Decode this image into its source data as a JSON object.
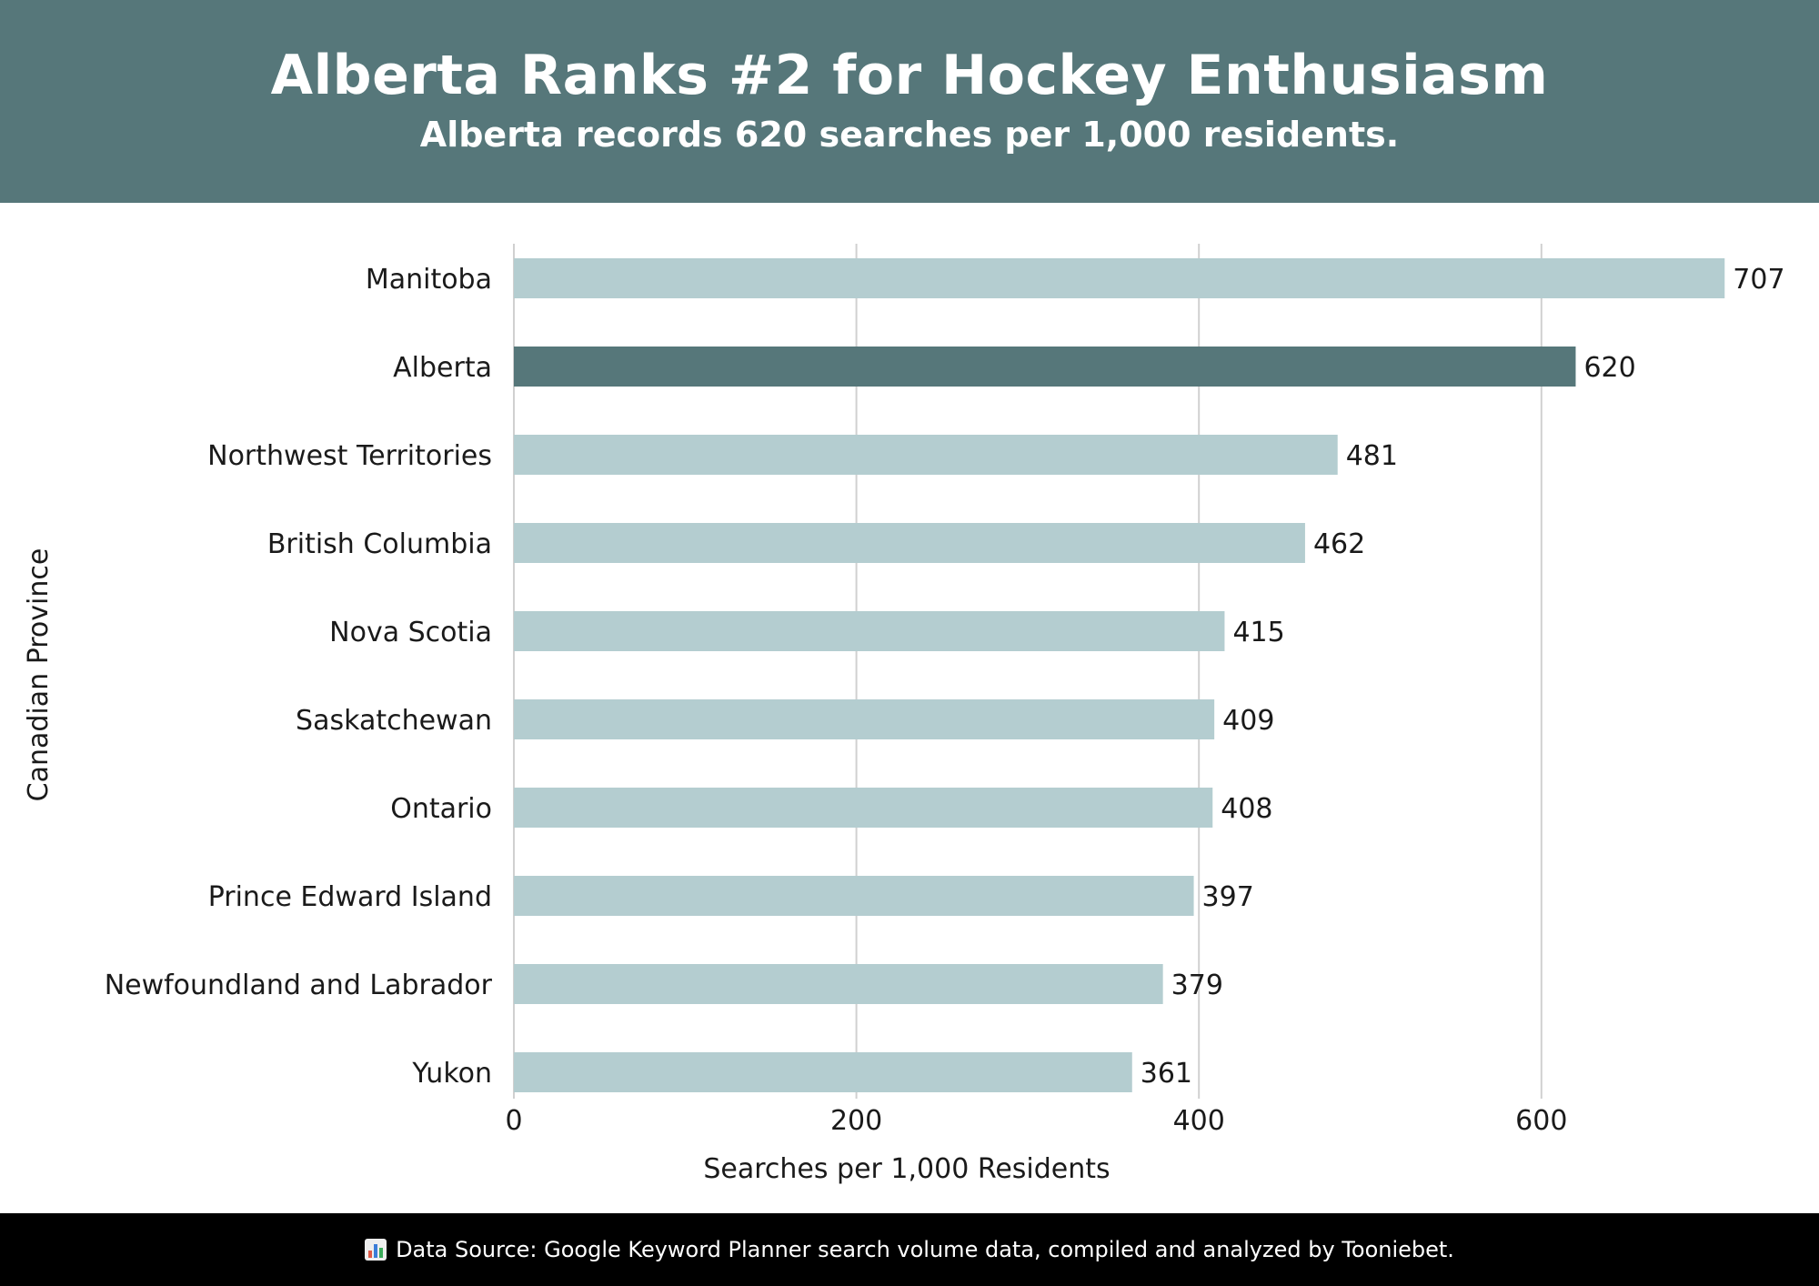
{
  "header": {
    "title": "Alberta Ranks #2 for Hockey Enthusiasm",
    "subtitle": "Alberta records 620 searches per 1,000 residents."
  },
  "footer": {
    "icon": "bar-chart-icon",
    "text": "Data Source: Google Keyword Planner search volume data, compiled and analyzed by Tooniebet."
  },
  "colors": {
    "header_bg": "#56777a",
    "highlight_bar": "#56777a",
    "bar": "#b4cdd0",
    "grid": "#d0d0d0",
    "footer_bg": "#000000"
  },
  "chart_data": {
    "type": "bar",
    "orientation": "horizontal",
    "categories": [
      "Manitoba",
      "Alberta",
      "Northwest Territories",
      "British Columbia",
      "Nova Scotia",
      "Saskatchewan",
      "Ontario",
      "Prince Edward Island",
      "Newfoundland and Labrador",
      "Yukon"
    ],
    "values": [
      707,
      620,
      481,
      462,
      415,
      409,
      408,
      397,
      379,
      361
    ],
    "highlight": "Alberta",
    "xlabel": "Searches per 1,000 Residents",
    "ylabel": "Canadian Province",
    "xlim": [
      0,
      760
    ],
    "xticks": [
      0,
      200,
      400,
      600
    ],
    "grid": true
  }
}
